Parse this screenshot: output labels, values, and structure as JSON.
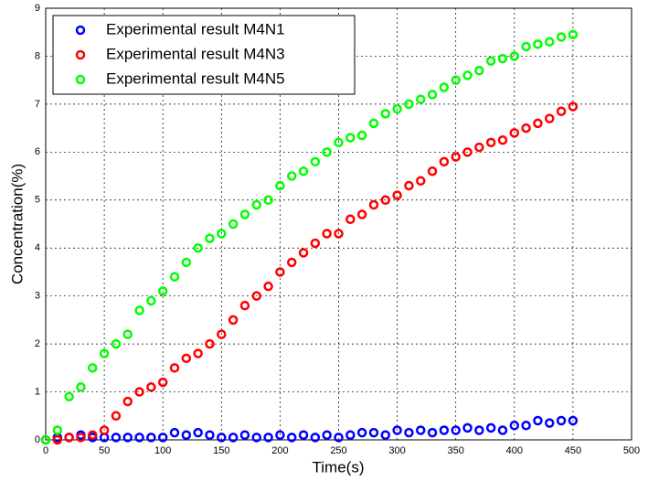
{
  "chart_data": {
    "type": "scatter",
    "xlabel": "Time(s)",
    "ylabel": "Concentration(%)",
    "x": [
      0,
      10,
      20,
      30,
      40,
      50,
      60,
      70,
      80,
      90,
      100,
      110,
      120,
      130,
      140,
      150,
      160,
      170,
      180,
      190,
      200,
      210,
      220,
      230,
      240,
      250,
      260,
      270,
      280,
      290,
      300,
      310,
      320,
      330,
      340,
      350,
      360,
      370,
      380,
      390,
      400,
      410,
      420,
      430,
      440,
      450
    ],
    "series": [
      {
        "name": "Experimental result M4N1",
        "color": "#0000ff",
        "values": [
          0,
          0.05,
          0.05,
          0.1,
          0.05,
          0.05,
          0.05,
          0.05,
          0.05,
          0.05,
          0.05,
          0.15,
          0.1,
          0.15,
          0.1,
          0.05,
          0.05,
          0.1,
          0.05,
          0.05,
          0.1,
          0.05,
          0.1,
          0.05,
          0.1,
          0.05,
          0.1,
          0.15,
          0.15,
          0.1,
          0.2,
          0.15,
          0.2,
          0.15,
          0.2,
          0.2,
          0.25,
          0.2,
          0.25,
          0.2,
          0.3,
          0.3,
          0.4,
          0.35,
          0.4,
          0.4
        ]
      },
      {
        "name": "Experimental result M4N3",
        "color": "#ff0000",
        "values": [
          0,
          0,
          0.05,
          0.05,
          0.1,
          0.2,
          0.5,
          0.8,
          1.0,
          1.1,
          1.2,
          1.5,
          1.7,
          1.8,
          2.0,
          2.2,
          2.5,
          2.8,
          3.0,
          3.2,
          3.5,
          3.7,
          3.9,
          4.1,
          4.3,
          4.3,
          4.6,
          4.7,
          4.9,
          5.0,
          5.1,
          5.3,
          5.4,
          5.6,
          5.8,
          5.9,
          6.0,
          6.1,
          6.2,
          6.25,
          6.4,
          6.5,
          6.6,
          6.7,
          6.85,
          6.95
        ]
      },
      {
        "name": "Experimental result M4N5",
        "color": "#00ff00",
        "values": [
          0,
          0.2,
          0.9,
          1.1,
          1.5,
          1.8,
          2.0,
          2.2,
          2.7,
          2.9,
          3.1,
          3.4,
          3.7,
          4.0,
          4.2,
          4.3,
          4.5,
          4.7,
          4.9,
          5.0,
          5.3,
          5.5,
          5.6,
          5.8,
          6.0,
          6.2,
          6.3,
          6.35,
          6.6,
          6.8,
          6.9,
          7.0,
          7.1,
          7.2,
          7.35,
          7.5,
          7.6,
          7.7,
          7.9,
          7.95,
          8.0,
          8.2,
          8.25,
          8.3,
          8.4,
          8.45
        ]
      }
    ],
    "xlim": [
      0,
      500
    ],
    "xticks": [
      0,
      50,
      100,
      150,
      200,
      250,
      300,
      350,
      400,
      450,
      500
    ],
    "ylim": [
      0,
      9
    ],
    "yticks": [
      0,
      1,
      2,
      3,
      4,
      5,
      6,
      7,
      8,
      9
    ],
    "grid": true,
    "legend": "upper left"
  }
}
